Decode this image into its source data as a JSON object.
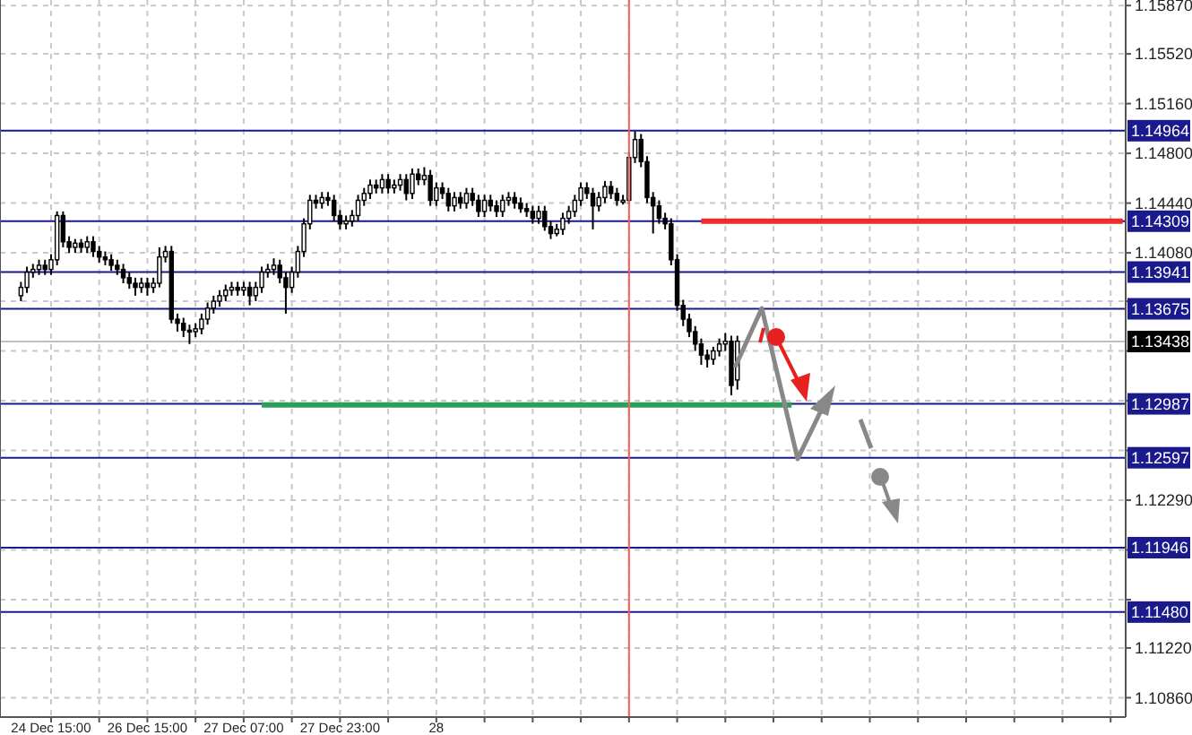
{
  "chart_data": {
    "type": "candlestick",
    "categories": [
      null,
      null,
      null,
      null,
      null,
      "24 Dec 15:00",
      null,
      null,
      null,
      null,
      null,
      null,
      null,
      null,
      null,
      null,
      null,
      null,
      null,
      null,
      null,
      "26 Dec 15:00",
      null,
      null,
      null,
      null,
      null,
      null,
      null,
      null,
      null,
      null,
      null,
      null,
      null,
      null,
      null,
      "27 Dec 07:00",
      null,
      null,
      null,
      null,
      null,
      null,
      null,
      null,
      null,
      null,
      null,
      null,
      null,
      null,
      null,
      "27 Dec 23:00",
      null,
      null,
      null,
      null,
      null,
      null,
      null,
      null,
      null,
      null,
      null,
      null,
      null,
      null,
      null,
      "28",
      null,
      null,
      null,
      null,
      null,
      null,
      null,
      null,
      null,
      null,
      null,
      null,
      null,
      null,
      null,
      null,
      null,
      null,
      null,
      null,
      null,
      null,
      null,
      null,
      null,
      null,
      null,
      null,
      null,
      null,
      null,
      null,
      null,
      null,
      null,
      null,
      null,
      null,
      null,
      null,
      null,
      null,
      null,
      null,
      null,
      null,
      null,
      null,
      null,
      null,
      null,
      null,
      null,
      null,
      null,
      null,
      null,
      null,
      null,
      null,
      null,
      null,
      null,
      null,
      null,
      null,
      null,
      null,
      null,
      null,
      null,
      null,
      null,
      null,
      null,
      null,
      null,
      null,
      null,
      null,
      null,
      null,
      null,
      null,
      null,
      null,
      null,
      null,
      null,
      null,
      null,
      null,
      null,
      null,
      null,
      null,
      null,
      null,
      null,
      null,
      null,
      null,
      null,
      null,
      null,
      null,
      null,
      null,
      null,
      null,
      null,
      null,
      null,
      null
    ],
    "ohlc": [
      [
        1.1377,
        1.1387,
        1.1373,
        1.1383
      ],
      [
        1.1383,
        1.1398,
        1.1379,
        1.1394
      ],
      [
        1.1394,
        1.14,
        1.139,
        1.1396
      ],
      [
        1.1396,
        1.1403,
        1.1392,
        1.1399
      ],
      [
        1.1399,
        1.1403,
        1.1392,
        1.1396
      ],
      [
        1.1396,
        1.1407,
        1.1392,
        1.1403
      ],
      [
        1.1403,
        1.1438,
        1.1399,
        1.1435
      ],
      [
        1.1435,
        1.1438,
        1.1412,
        1.1416
      ],
      [
        1.1416,
        1.142,
        1.1408,
        1.1412
      ],
      [
        1.1412,
        1.1418,
        1.1408,
        1.1415
      ],
      [
        1.1415,
        1.1418,
        1.1408,
        1.1412
      ],
      [
        1.1412,
        1.142,
        1.1408,
        1.1416
      ],
      [
        1.1416,
        1.142,
        1.1405,
        1.1409
      ],
      [
        1.1409,
        1.1413,
        1.1401,
        1.1405
      ],
      [
        1.1405,
        1.1409,
        1.1399,
        1.1403
      ],
      [
        1.1403,
        1.1407,
        1.1395,
        1.1399
      ],
      [
        1.1399,
        1.1403,
        1.1392,
        1.1396
      ],
      [
        1.1396,
        1.14,
        1.1386,
        1.139
      ],
      [
        1.139,
        1.1394,
        1.1382,
        1.1386
      ],
      [
        1.1386,
        1.139,
        1.1377,
        1.1383
      ],
      [
        1.1383,
        1.139,
        1.1379,
        1.1386
      ],
      [
        1.1386,
        1.139,
        1.1377,
        1.1383
      ],
      [
        1.1383,
        1.139,
        1.1379,
        1.1386
      ],
      [
        1.1386,
        1.1412,
        1.1383,
        1.1405
      ],
      [
        1.1405,
        1.1413,
        1.1401,
        1.1409
      ],
      [
        1.1409,
        1.1413,
        1.1357,
        1.136
      ],
      [
        1.136,
        1.1364,
        1.1351,
        1.1357
      ],
      [
        1.1357,
        1.1361,
        1.1347,
        1.1352
      ],
      [
        1.1352,
        1.1356,
        1.1342,
        1.1351
      ],
      [
        1.1351,
        1.1357,
        1.1347,
        1.1353
      ],
      [
        1.1353,
        1.1364,
        1.1349,
        1.136
      ],
      [
        1.136,
        1.1372,
        1.1356,
        1.1368
      ],
      [
        1.1368,
        1.1377,
        1.1364,
        1.1373
      ],
      [
        1.1373,
        1.1381,
        1.1369,
        1.1377
      ],
      [
        1.1377,
        1.1385,
        1.1373,
        1.1381
      ],
      [
        1.1381,
        1.1387,
        1.1377,
        1.1383
      ],
      [
        1.1383,
        1.1387,
        1.1377,
        1.1381
      ],
      [
        1.1381,
        1.1387,
        1.1377,
        1.1383
      ],
      [
        1.1383,
        1.1387,
        1.137,
        1.1377
      ],
      [
        1.1377,
        1.1387,
        1.1373,
        1.1383
      ],
      [
        1.1383,
        1.1398,
        1.1379,
        1.1394
      ],
      [
        1.1394,
        1.14,
        1.139,
        1.1396
      ],
      [
        1.1396,
        1.1404,
        1.1392,
        1.1399
      ],
      [
        1.1399,
        1.1403,
        1.1386,
        1.139
      ],
      [
        1.139,
        1.1394,
        1.1364,
        1.1383
      ],
      [
        1.1383,
        1.1398,
        1.1379,
        1.1394
      ],
      [
        1.1394,
        1.1413,
        1.139,
        1.1409
      ],
      [
        1.1409,
        1.1433,
        1.1405,
        1.1429
      ],
      [
        1.1429,
        1.145,
        1.1425,
        1.1446
      ],
      [
        1.1446,
        1.145,
        1.144,
        1.1444
      ],
      [
        1.1444,
        1.1452,
        1.144,
        1.1448
      ],
      [
        1.1448,
        1.1452,
        1.1442,
        1.1446
      ],
      [
        1.1446,
        1.145,
        1.1431,
        1.1435
      ],
      [
        1.1435,
        1.1439,
        1.1425,
        1.1429
      ],
      [
        1.1429,
        1.1435,
        1.1425,
        1.1431
      ],
      [
        1.1431,
        1.1439,
        1.1427,
        1.1435
      ],
      [
        1.1435,
        1.145,
        1.1431,
        1.1446
      ],
      [
        1.1446,
        1.1455,
        1.1442,
        1.1451
      ],
      [
        1.1451,
        1.1461,
        1.1447,
        1.1457
      ],
      [
        1.1457,
        1.1461,
        1.1451,
        1.1455
      ],
      [
        1.1455,
        1.1465,
        1.1451,
        1.1461
      ],
      [
        1.1461,
        1.1465,
        1.1451,
        1.1455
      ],
      [
        1.1455,
        1.1461,
        1.1451,
        1.1457
      ],
      [
        1.1457,
        1.1465,
        1.1453,
        1.1461
      ],
      [
        1.1461,
        1.1465,
        1.1446,
        1.1451
      ],
      [
        1.1451,
        1.1469,
        1.1447,
        1.1465
      ],
      [
        1.1465,
        1.1469,
        1.1457,
        1.1461
      ],
      [
        1.1461,
        1.147,
        1.1457,
        1.1464
      ],
      [
        1.1464,
        1.1468,
        1.1442,
        1.1446
      ],
      [
        1.1446,
        1.1459,
        1.1442,
        1.1455
      ],
      [
        1.1455,
        1.1459,
        1.1447,
        1.1451
      ],
      [
        1.1451,
        1.1455,
        1.1438,
        1.1442
      ],
      [
        1.1442,
        1.1452,
        1.1438,
        1.1448
      ],
      [
        1.1448,
        1.1452,
        1.144,
        1.1444
      ],
      [
        1.1444,
        1.1455,
        1.144,
        1.1451
      ],
      [
        1.1451,
        1.1455,
        1.1442,
        1.1446
      ],
      [
        1.1446,
        1.145,
        1.1434,
        1.1438
      ],
      [
        1.1438,
        1.145,
        1.1434,
        1.1446
      ],
      [
        1.1446,
        1.145,
        1.1438,
        1.1442
      ],
      [
        1.1442,
        1.1446,
        1.1434,
        1.1438
      ],
      [
        1.1438,
        1.145,
        1.1434,
        1.1446
      ],
      [
        1.1446,
        1.1452,
        1.1442,
        1.1448
      ],
      [
        1.1448,
        1.1452,
        1.144,
        1.1444
      ],
      [
        1.1444,
        1.1448,
        1.1437,
        1.144
      ],
      [
        1.144,
        1.1444,
        1.1434,
        1.1438
      ],
      [
        1.1438,
        1.1442,
        1.1429,
        1.1433
      ],
      [
        1.1433,
        1.1442,
        1.1429,
        1.1438
      ],
      [
        1.1438,
        1.1442,
        1.1424,
        1.1427
      ],
      [
        1.1427,
        1.1431,
        1.1418,
        1.1422
      ],
      [
        1.1422,
        1.1429,
        1.142,
        1.1425
      ],
      [
        1.1425,
        1.1437,
        1.1421,
        1.1433
      ],
      [
        1.1433,
        1.1442,
        1.1429,
        1.1438
      ],
      [
        1.1438,
        1.145,
        1.1434,
        1.1446
      ],
      [
        1.1446,
        1.1459,
        1.1442,
        1.1455
      ],
      [
        1.1455,
        1.1459,
        1.1447,
        1.1451
      ],
      [
        1.1451,
        1.1455,
        1.1425,
        1.1442
      ],
      [
        1.1442,
        1.1452,
        1.1438,
        1.1448
      ],
      [
        1.1448,
        1.146,
        1.1444,
        1.1456
      ],
      [
        1.1456,
        1.146,
        1.1447,
        1.1451
      ],
      [
        1.1451,
        1.1455,
        1.1442,
        1.1446
      ],
      [
        1.1446,
        1.145,
        1.1443,
        1.1446
      ],
      [
        1.1446,
        1.1481,
        1.1443,
        1.1477
      ],
      [
        1.1477,
        1.1496,
        1.1473,
        1.149
      ],
      [
        1.149,
        1.1494,
        1.147,
        1.1474
      ],
      [
        1.1474,
        1.1478,
        1.1444,
        1.1448
      ],
      [
        1.1448,
        1.1452,
        1.1422,
        1.1442
      ],
      [
        1.1442,
        1.1446,
        1.1429,
        1.1433
      ],
      [
        1.1433,
        1.1437,
        1.1425,
        1.1429
      ],
      [
        1.1429,
        1.1433,
        1.1399,
        1.1403
      ],
      [
        1.1403,
        1.1407,
        1.1366,
        1.137
      ],
      [
        1.137,
        1.1374,
        1.1355,
        1.136
      ],
      [
        1.136,
        1.1364,
        1.1347,
        1.1351
      ],
      [
        1.1351,
        1.1355,
        1.1337,
        1.1342
      ],
      [
        1.1342,
        1.1346,
        1.1327,
        1.1334
      ],
      [
        1.1334,
        1.1338,
        1.1325,
        1.1331
      ],
      [
        1.1331,
        1.134,
        1.1327,
        1.1337
      ],
      [
        1.1337,
        1.1346,
        1.1333,
        1.1342
      ],
      [
        1.1342,
        1.135,
        1.1337,
        1.1344
      ],
      [
        1.1344,
        1.1348,
        1.1305,
        1.1312
      ],
      [
        1.1316,
        1.1348,
        1.1309,
        1.1344
      ],
      null,
      null,
      null,
      null,
      null,
      null,
      null,
      null,
      null,
      null,
      null,
      null,
      null,
      null,
      null,
      null,
      null,
      null,
      null,
      null,
      null,
      null,
      null,
      null,
      null,
      null,
      null,
      null,
      null,
      null,
      null,
      null,
      null,
      null,
      null,
      null,
      null,
      null,
      null,
      null,
      null,
      null,
      null,
      null,
      null,
      null,
      null,
      null,
      null,
      null,
      null,
      null,
      null,
      null,
      null,
      null,
      null,
      null,
      null,
      null,
      null,
      null,
      null,
      null
    ],
    "series": [
      {
        "type": "line",
        "color": "#ee2c2c",
        "values": [
          null,
          null,
          null,
          null,
          null,
          null,
          null,
          null,
          null,
          null,
          null,
          null,
          null,
          null,
          null,
          null,
          null,
          null,
          null,
          null,
          null,
          null,
          null,
          null,
          null,
          null,
          null,
          null,
          null,
          null,
          null,
          null,
          null,
          null,
          null,
          null,
          null,
          null,
          null,
          null,
          null,
          null,
          null,
          null,
          null,
          null,
          null,
          null,
          null,
          null,
          null,
          null,
          null,
          null,
          null,
          null,
          null,
          null,
          null,
          null,
          null,
          null,
          null,
          null,
          null,
          null,
          null,
          null,
          null,
          null,
          null,
          null,
          null,
          null,
          null,
          null,
          null,
          null,
          null,
          null,
          null,
          null,
          null,
          null,
          null,
          null,
          null,
          null,
          null,
          null,
          null,
          null,
          null,
          null,
          null,
          null,
          null,
          null,
          null,
          null,
          null,
          null,
          null,
          null,
          null,
          null,
          null,
          null,
          null,
          null,
          null,
          null,
          null,
          1.1431,
          1.1431,
          1.1431,
          1.1431,
          1.1431,
          1.1431,
          1.1431,
          1.1431,
          1.1431,
          1.1431,
          1.1431,
          1.1431,
          1.1431,
          1.1431,
          1.1431,
          1.1431,
          1.1431,
          1.1431,
          1.1431,
          1.1431,
          1.1431,
          1.1431,
          1.1431,
          1.1431,
          1.1431,
          1.1431,
          1.1431,
          1.1431,
          1.1431,
          1.1431,
          1.1431,
          1.1431,
          1.1431,
          1.1431,
          1.1431,
          1.1431,
          1.1431,
          1.1431,
          1.1431,
          1.1431,
          1.1431,
          1.1431,
          1.1431,
          1.1431,
          1.1431,
          1.1431,
          1.1431,
          1.1431,
          1.1431,
          1.1431,
          1.1431,
          1.1431,
          1.1431,
          1.1431,
          1.1431,
          1.1431,
          1.1431,
          1.1431,
          1.1431,
          1.1431,
          1.1431,
          1.1431,
          1.1431,
          1.1431,
          1.1431,
          1.1431,
          1.1431,
          1.1431,
          1.1431,
          1.1431,
          1.1431
        ]
      },
      {
        "type": "line",
        "color": "#2ca05a",
        "values": [
          null,
          null,
          null,
          null,
          null,
          null,
          null,
          null,
          null,
          null,
          null,
          null,
          null,
          null,
          null,
          null,
          null,
          null,
          null,
          null,
          null,
          null,
          null,
          null,
          null,
          null,
          null,
          null,
          null,
          null,
          null,
          null,
          null,
          null,
          null,
          null,
          null,
          null,
          null,
          null,
          1.1298,
          1.1298,
          1.1298,
          1.1298,
          1.1298,
          1.1298,
          1.1298,
          1.1298,
          1.1298,
          1.1298,
          1.1298,
          1.1298,
          1.1298,
          1.1298,
          1.1298,
          1.1298,
          1.1298,
          1.1298,
          1.1298,
          1.1298,
          1.1298,
          1.1298,
          1.1298,
          1.1298,
          1.1298,
          1.1298,
          1.1298,
          1.1298,
          1.1298,
          1.1298,
          1.1298,
          1.1298,
          1.1298,
          1.1298,
          1.1298,
          1.1298,
          1.1298,
          1.1298,
          1.1298,
          1.1298,
          1.1298,
          1.1298,
          1.1298,
          1.1298,
          1.1298,
          1.1298,
          1.1298,
          1.1298,
          1.1298,
          1.1298,
          1.1298,
          1.1298,
          1.1298,
          1.1298,
          1.1298,
          1.1298,
          1.1298,
          1.1298,
          1.1298,
          1.1298,
          1.1298,
          1.1298,
          1.1298,
          1.1298,
          1.1298,
          1.1298,
          1.1298,
          1.1298,
          1.1298,
          1.1298,
          1.1298,
          1.1298,
          1.1298,
          1.1298,
          1.1298,
          1.1298,
          1.1298,
          1.1298,
          1.1298,
          1.1298,
          1.1298,
          1.1298,
          1.1298,
          1.1298,
          1.1298,
          1.1298,
          1.1298,
          1.1298,
          1.1298,
          null,
          null,
          null,
          null,
          null,
          null,
          null,
          null,
          null,
          null,
          null,
          null,
          null,
          null,
          null,
          null,
          null,
          null,
          null,
          null,
          null,
          null,
          null,
          null,
          null,
          null,
          null,
          null,
          null,
          null,
          null,
          null,
          null,
          null,
          null,
          null,
          null,
          null,
          null,
          null,
          null,
          null,
          null,
          null,
          null,
          null,
          null,
          null,
          null,
          null,
          null,
          null,
          null,
          null,
          null
        ]
      }
    ],
    "ylim": [
      1.1072,
      1.1591
    ],
    "yticks": [
      {
        "value": 1.1587,
        "label": "1.15870"
      },
      {
        "value": 1.1552,
        "label": "1.15520"
      },
      {
        "value": 1.1516,
        "label": "1.15160"
      },
      {
        "value": 1.148,
        "label": "1.14800"
      },
      {
        "value": 1.1444,
        "label": "1.14440"
      },
      {
        "value": 1.1408,
        "label": "1.14080"
      },
      {
        "value": 1.1373,
        "label": null
      },
      {
        "value": 1.1337,
        "label": null
      },
      {
        "value": 1.1301,
        "label": null
      },
      {
        "value": 1.1265,
        "label": null
      },
      {
        "value": 1.1229,
        "label": "1.12290"
      },
      {
        "value": 1.1193,
        "label": null
      },
      {
        "value": 1.1157,
        "label": null
      },
      {
        "value": 1.1122,
        "label": "1.11220"
      },
      {
        "value": 1.1086,
        "label": "1.10860"
      }
    ],
    "grid": true,
    "ref_lines": [
      {
        "axis": "y",
        "value": 1.14964,
        "label": "1.14964",
        "color": "#1a1a8c"
      },
      {
        "axis": "y",
        "value": 1.14309,
        "label": "1.14309",
        "color": "#1a1a8c"
      },
      {
        "axis": "y",
        "value": 1.13941,
        "label": "1.13941",
        "color": "#1a1a8c"
      },
      {
        "axis": "y",
        "value": 1.13675,
        "label": "1.13675",
        "color": "#1a1a8c"
      },
      {
        "axis": "y",
        "value": 1.13438,
        "label": "1.13438",
        "color": "#000000"
      },
      {
        "axis": "y",
        "value": 1.12987,
        "label": "1.12987",
        "color": "#1a1a8c"
      },
      {
        "axis": "y",
        "value": 1.12597,
        "label": "1.12597",
        "color": "#1a1a8c"
      },
      {
        "axis": "y",
        "value": 1.11946,
        "label": "1.11946",
        "color": "#1a1a8c"
      },
      {
        "axis": "y",
        "value": 1.1148,
        "label": "1.11480",
        "color": "#1a1a8c"
      }
    ]
  }
}
